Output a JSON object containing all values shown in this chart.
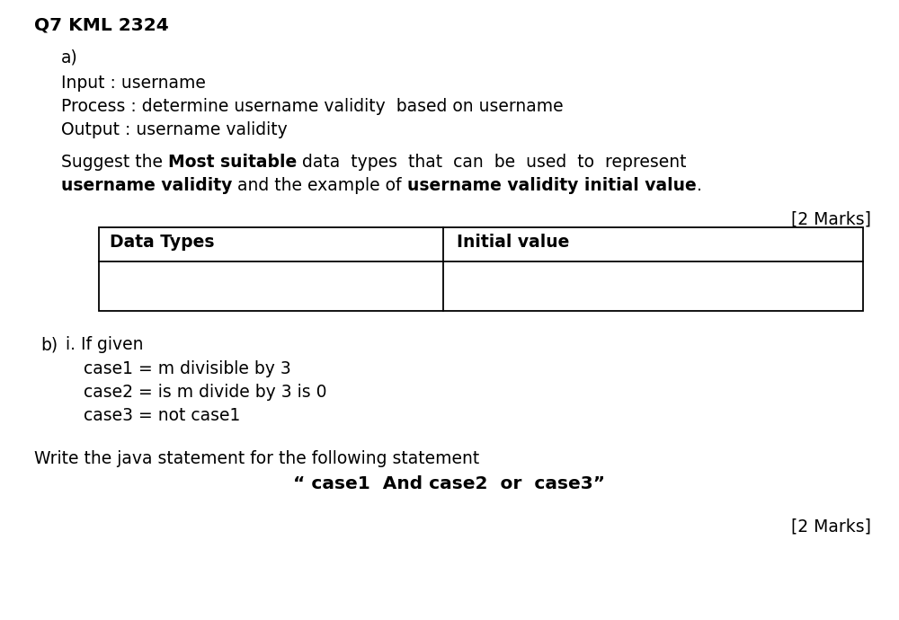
{
  "background_color": "#ffffff",
  "title": "Q7 KML 2324",
  "title_fontsize": 14.5,
  "section_a_label": "a)",
  "lines_a": [
    "Input : username",
    "Process : determine username validity  based on username",
    "Output : username validity"
  ],
  "suggest_line1_parts": [
    {
      "text": "Suggest the ",
      "bold": false
    },
    {
      "text": "Most suitable",
      "bold": true
    },
    {
      "text": " data  types  that  can  be  used  to  represent",
      "bold": false
    }
  ],
  "suggest_line2_parts": [
    {
      "text": "username validity",
      "bold": true
    },
    {
      "text": " and the example of ",
      "bold": false
    },
    {
      "text": "username validity initial value",
      "bold": true
    },
    {
      "text": ".",
      "bold": false
    }
  ],
  "marks_a": "[2 Marks]",
  "table_col1_header": "Data Types",
  "table_col2_header": "Initial value",
  "section_b_label": "b)",
  "section_b_i": "i. If given",
  "lines_b": [
    "case1 = m divisible by 3",
    "case2 = is m divide by 3 is 0",
    "case3 = not case1"
  ],
  "write_line": "Write the java statement for the following statement",
  "java_statement": "“ case1  And case2  or  case3”",
  "marks_b": "[2 Marks]",
  "font_size_body": 13.5,
  "font_family": "Arial Narrow"
}
